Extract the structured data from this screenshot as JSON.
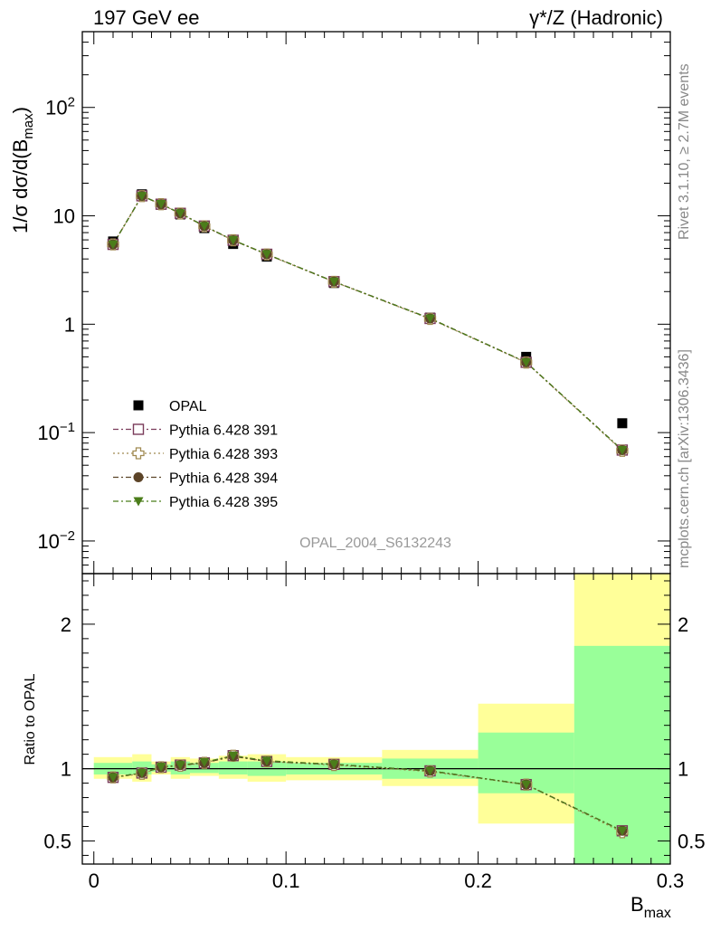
{
  "header": {
    "left": "197 GeV ee",
    "right": "γ*/Z (Hadronic)",
    "side_top": "Rivet 3.1.10, ≥ 2.7M events",
    "side_bottom": "mcplots.cern.ch [arXiv:1306.3436]",
    "watermark": "OPAL_2004_S6132243"
  },
  "chart_data": [
    {
      "type": "scatter",
      "panel": "main",
      "yscale": "log",
      "ylabel": "1/σ dσ/d(B_max)",
      "ylim": [
        0.005,
        500
      ],
      "xlim": [
        -0.006,
        0.3
      ],
      "legend_position": "lower-left",
      "yticklabels": [
        "10^-2",
        "10^-1",
        "1",
        "10",
        "10^2"
      ],
      "bin_edges": [
        0,
        0.02,
        0.03,
        0.04,
        0.05,
        0.065,
        0.08,
        0.1,
        0.15,
        0.2,
        0.25,
        0.3
      ],
      "x": [
        0.01,
        0.025,
        0.035,
        0.045,
        0.0575,
        0.0725,
        0.09,
        0.125,
        0.175,
        0.225,
        0.275
      ],
      "series": [
        {
          "name": "OPAL",
          "marker": "square",
          "color": "#000000",
          "values": [
            5.8,
            15.8,
            12.7,
            10.3,
            7.7,
            5.5,
            4.2,
            2.4,
            1.15,
            0.5,
            0.122
          ]
        },
        {
          "name": "Pythia 6.428 391",
          "marker": "open-square",
          "color": "#7a3b5a",
          "dash": "dashdot",
          "values": [
            5.45,
            15.3,
            12.8,
            10.55,
            8.05,
            5.95,
            4.42,
            2.47,
            1.13,
            0.445,
            0.069
          ]
        },
        {
          "name": "Pythia 6.428 393",
          "marker": "open-cross",
          "color": "#a08a52",
          "dash": "dotted",
          "values": [
            5.45,
            15.2,
            12.8,
            10.5,
            8.0,
            5.95,
            4.4,
            2.46,
            1.12,
            0.443,
            0.068
          ]
        },
        {
          "name": "Pythia 6.428 394",
          "marker": "circle",
          "color": "#5c4428",
          "dash": "dashdot",
          "values": [
            5.45,
            15.25,
            12.8,
            10.55,
            8.05,
            5.95,
            4.42,
            2.47,
            1.13,
            0.445,
            0.069
          ]
        },
        {
          "name": "Pythia 6.428 395",
          "marker": "triangle-down",
          "color": "#4b7d1a",
          "dash": "dashdot",
          "values": [
            5.45,
            15.25,
            12.85,
            10.55,
            8.05,
            5.97,
            4.43,
            2.47,
            1.13,
            0.446,
            0.069
          ]
        }
      ]
    },
    {
      "type": "scatter",
      "panel": "ratio",
      "ylabel": "Ratio to OPAL",
      "xlabel": "B_max",
      "ylim": [
        0.34,
        2.35
      ],
      "xlim": [
        -0.006,
        0.3
      ],
      "xticklabels": [
        "0",
        "0.1",
        "0.2",
        "0.3"
      ],
      "yticklabels": [
        "0.5",
        "1",
        "2"
      ],
      "bin_edges": [
        0,
        0.02,
        0.03,
        0.04,
        0.05,
        0.065,
        0.08,
        0.1,
        0.15,
        0.2,
        0.25,
        0.3
      ],
      "x": [
        0.01,
        0.025,
        0.035,
        0.045,
        0.0575,
        0.0725,
        0.09,
        0.125,
        0.175,
        0.225,
        0.275
      ],
      "band_outer": {
        "color": "#ffff99",
        "lo": [
          0.93,
          0.91,
          0.96,
          0.93,
          0.95,
          0.93,
          0.91,
          0.92,
          0.88,
          0.62,
          0.3
        ],
        "hi": [
          1.08,
          1.1,
          1.05,
          1.08,
          1.07,
          1.09,
          1.1,
          1.08,
          1.13,
          1.45,
          2.4
        ]
      },
      "band_inner": {
        "color": "#99ff99",
        "lo": [
          0.96,
          0.96,
          0.98,
          0.96,
          0.97,
          0.96,
          0.95,
          0.96,
          0.93,
          0.83,
          0.3
        ],
        "hi": [
          1.04,
          1.05,
          1.03,
          1.05,
          1.04,
          1.05,
          1.05,
          1.04,
          1.07,
          1.25,
          1.85
        ]
      },
      "series": [
        {
          "name": "Pythia 6.428 391",
          "values": [
            0.94,
            0.97,
            1.01,
            1.025,
            1.04,
            1.09,
            1.05,
            1.03,
            0.985,
            0.89,
            0.57
          ]
        },
        {
          "name": "Pythia 6.428 393",
          "values": [
            0.94,
            0.965,
            1.01,
            1.02,
            1.04,
            1.09,
            1.05,
            1.025,
            0.98,
            0.89,
            0.56
          ]
        },
        {
          "name": "Pythia 6.428 394",
          "values": [
            0.94,
            0.97,
            1.01,
            1.025,
            1.04,
            1.085,
            1.05,
            1.03,
            0.985,
            0.89,
            0.57
          ]
        },
        {
          "name": "Pythia 6.428 395",
          "values": [
            0.94,
            0.97,
            1.012,
            1.025,
            1.045,
            1.09,
            1.055,
            1.03,
            0.985,
            0.89,
            0.57
          ]
        }
      ]
    }
  ]
}
